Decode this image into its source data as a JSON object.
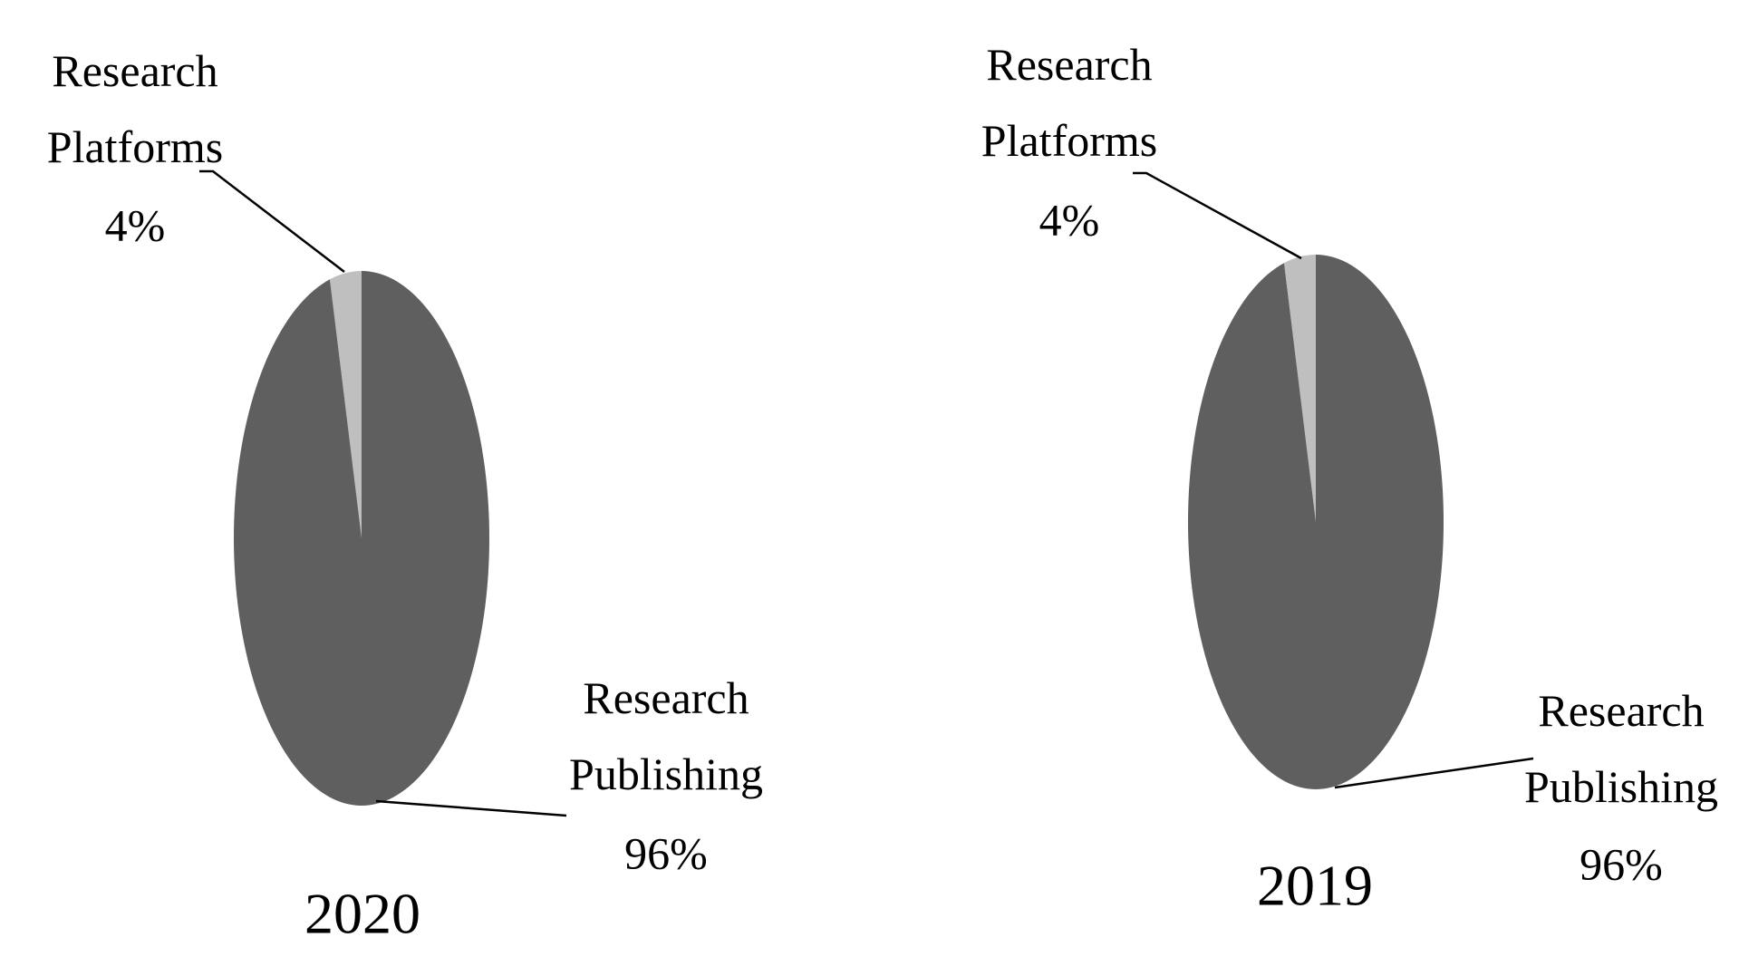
{
  "chart_data": [
    {
      "type": "pie",
      "title": "2020",
      "categories": [
        "Research Platforms",
        "Research Publishing"
      ],
      "values": [
        4,
        96
      ],
      "value_labels": [
        "4%",
        "96%"
      ],
      "colors": [
        "#bfbfbf",
        "#5f5f5f"
      ]
    },
    {
      "type": "pie",
      "title": "2019",
      "categories": [
        "Research Platforms",
        "Research Publishing"
      ],
      "values": [
        4,
        96
      ],
      "value_labels": [
        "4%",
        "96%"
      ],
      "colors": [
        "#bfbfbf",
        "#5f5f5f"
      ]
    }
  ]
}
